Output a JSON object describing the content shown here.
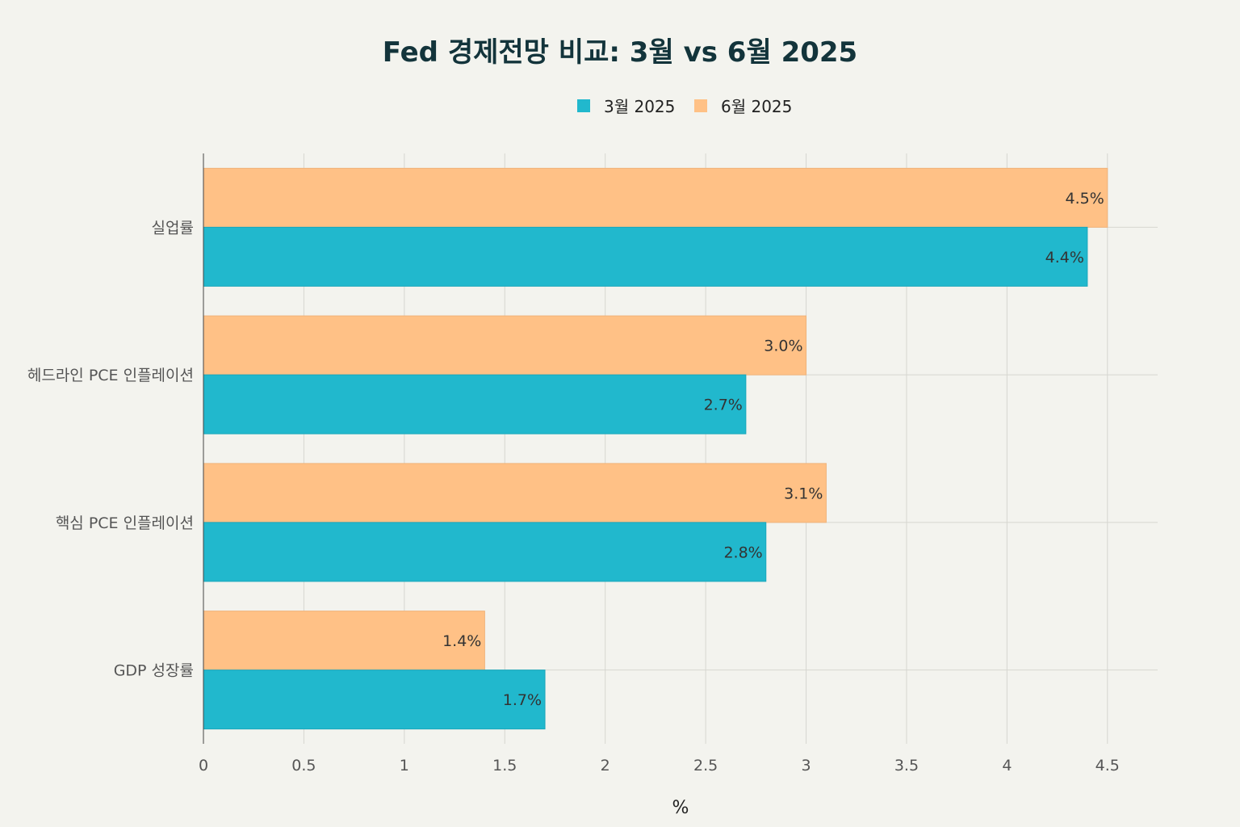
{
  "chart_data": {
    "type": "bar",
    "orientation": "horizontal",
    "title": "Fed 경제전망 비교: 3월 vs 6월 2025",
    "xlabel": "%",
    "ylabel": "",
    "xlim": [
      0,
      4.75
    ],
    "xticks": [
      "0",
      "0.5",
      "1",
      "1.5",
      "2",
      "2.5",
      "3",
      "3.5",
      "4",
      "4.5"
    ],
    "grid": true,
    "legend_position": "top-center",
    "categories": [
      "실업률",
      "헤드라인 PCE 인플레이션",
      "핵심 PCE 인플레이션",
      "GDP 성장률"
    ],
    "series": [
      {
        "name": "3월 2025",
        "color": "#21b8cd",
        "values": [
          4.4,
          2.7,
          2.8,
          1.7
        ],
        "labels": [
          "4.4%",
          "2.7%",
          "2.8%",
          "1.7%"
        ]
      },
      {
        "name": "6월 2025",
        "color": "#ffc186",
        "values": [
          4.5,
          3.0,
          3.1,
          1.4
        ],
        "labels": [
          "4.5%",
          "3.0%",
          "3.1%",
          "1.4%"
        ]
      }
    ]
  }
}
